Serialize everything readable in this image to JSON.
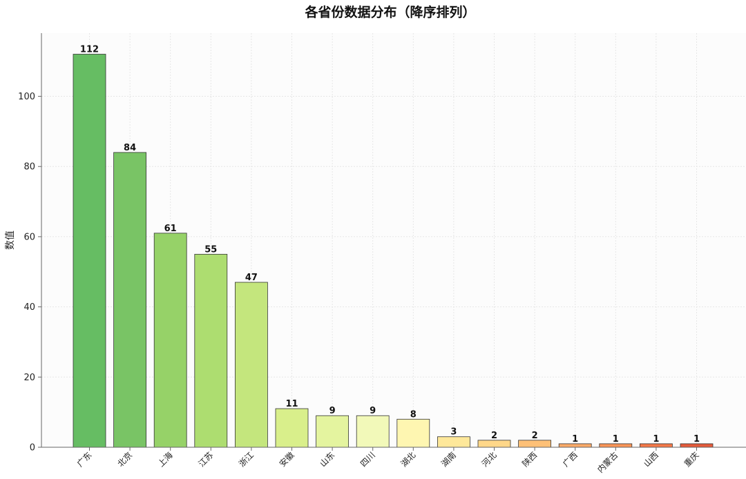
{
  "chart_data": {
    "type": "bar",
    "title": "各省份数据分布（降序排列）",
    "ylabel": "数值",
    "xlabel": "",
    "categories": [
      "广东",
      "北京",
      "上海",
      "江苏",
      "浙江",
      "安徽",
      "山东",
      "四川",
      "湖北",
      "湖南",
      "河北",
      "陕西",
      "广西",
      "内蒙古",
      "山西",
      "重庆"
    ],
    "values": [
      112,
      84,
      61,
      55,
      47,
      11,
      9,
      9,
      8,
      3,
      2,
      2,
      1,
      1,
      1,
      1
    ],
    "colors": [
      "#66bd63",
      "#79c465",
      "#96d268",
      "#addd70",
      "#c4e67d",
      "#d9ef8b",
      "#e4f49f",
      "#f2f9b9",
      "#fef6b1",
      "#fee89a",
      "#fed789",
      "#fdc077",
      "#fcaa68",
      "#f99457",
      "#f37848",
      "#e45b3b"
    ],
    "ylim": [
      0,
      118
    ],
    "yticks": [
      0,
      20,
      40,
      60,
      80,
      100
    ],
    "grid": true,
    "data_labels": true
  }
}
